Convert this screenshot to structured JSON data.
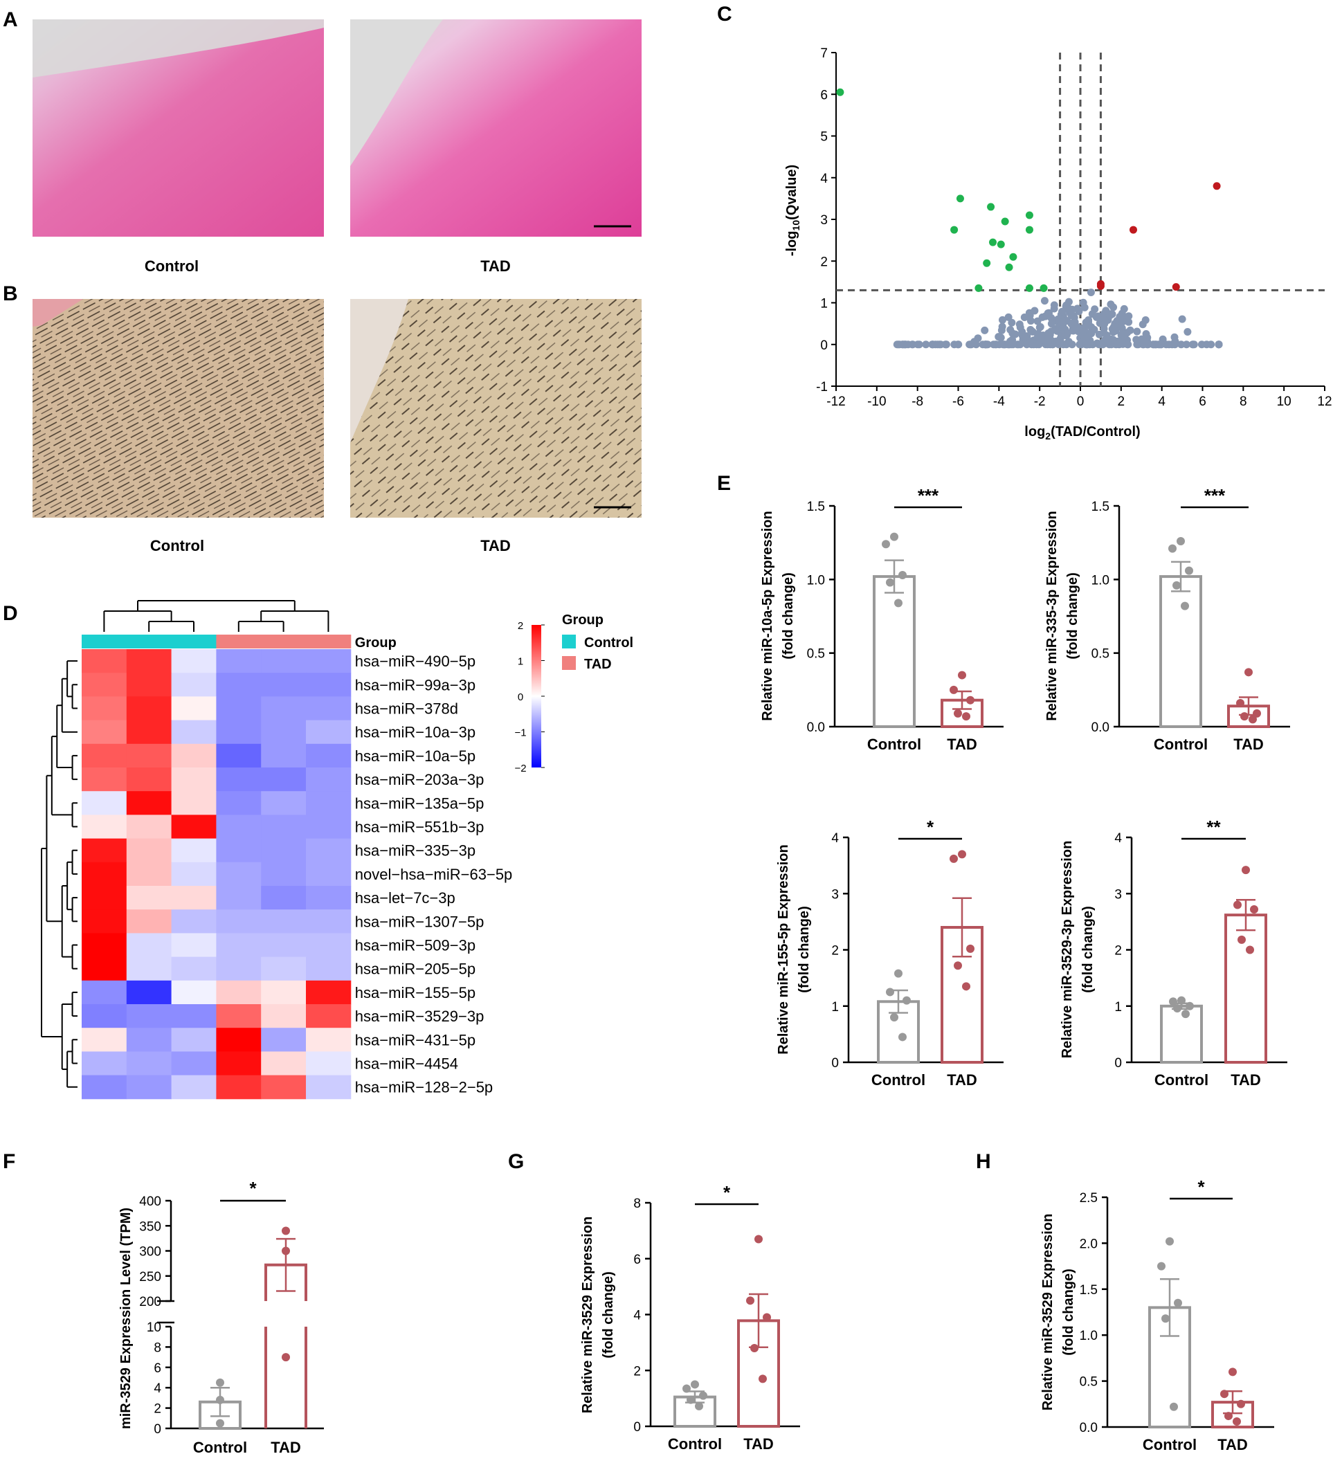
{
  "colors": {
    "control": "#999999",
    "tad": "#b5545c",
    "down_point": "#1fb34f",
    "up_point": "#c0191e",
    "ns_point": "#8596b2",
    "heat_high": "#ff0000",
    "heat_mid": "#ffffff",
    "heat_low": "#0000ff",
    "group_control": "#1ccfcf",
    "group_tad": "#f0807e"
  },
  "panels": {
    "A": {
      "label": "A",
      "left_caption": "Control",
      "right_caption": "TAD"
    },
    "B": {
      "label": "B",
      "left_caption": "Control",
      "right_caption": "TAD"
    },
    "C": {
      "label": "C"
    },
    "D": {
      "label": "D"
    },
    "E": {
      "label": "E"
    },
    "F": {
      "label": "F"
    },
    "G": {
      "label": "G"
    },
    "H": {
      "label": "H"
    }
  },
  "chart_data": [
    {
      "id": "C",
      "type": "scatter",
      "title": "",
      "xlabel": "log2(TAD/Control)",
      "ylabel": "-log10(Qvalue)",
      "xlim": [
        -12,
        12
      ],
      "ylim": [
        -1,
        7
      ],
      "xticks": [
        -12,
        -10,
        -8,
        -6,
        -4,
        -2,
        0,
        2,
        4,
        6,
        8,
        10,
        12
      ],
      "yticks": [
        -1,
        0,
        1,
        2,
        3,
        4,
        5,
        6,
        7
      ],
      "thresholds": {
        "x": [
          -1,
          0,
          1
        ],
        "y": 1.3
      },
      "down": [
        [
          -11.8,
          6.05
        ],
        [
          -5.9,
          3.5
        ],
        [
          -6.2,
          2.75
        ],
        [
          -4.4,
          3.3
        ],
        [
          -3.7,
          2.95
        ],
        [
          -2.5,
          3.1
        ],
        [
          -4.3,
          2.45
        ],
        [
          -3.9,
          2.4
        ],
        [
          -2.5,
          2.75
        ],
        [
          -4.6,
          1.95
        ],
        [
          -3.3,
          2.1
        ],
        [
          -3.5,
          1.85
        ],
        [
          -5.0,
          1.35
        ],
        [
          -2.5,
          1.35
        ],
        [
          -1.8,
          1.35
        ]
      ],
      "up": [
        [
          6.7,
          3.8
        ],
        [
          2.6,
          2.75
        ],
        [
          1.0,
          1.45
        ],
        [
          1.0,
          1.4
        ],
        [
          4.7,
          1.38
        ]
      ],
      "ns_seed": 7,
      "ns_count": 340
    },
    {
      "id": "D",
      "type": "heatmap",
      "group_label": "Group",
      "legend_title": "Group",
      "legend_entries": [
        "Control",
        "TAD"
      ],
      "columns": [
        "Control",
        "Control",
        "Control",
        "TAD",
        "TAD",
        "TAD"
      ],
      "scale": [
        -2,
        2
      ],
      "scale_ticks": [
        "2",
        "1",
        "0",
        "−1",
        "−2"
      ],
      "rows": [
        "hsa−miR−490−5p",
        "hsa−miR−99a−3p",
        "hsa−miR−378d",
        "hsa−miR−10a−3p",
        "hsa−miR−10a−5p",
        "hsa−miR−203a−3p",
        "hsa−miR−135a−5p",
        "hsa−miR−551b−3p",
        "hsa−miR−335−3p",
        "novel−hsa−miR−63−5p",
        "hsa−let−7c−3p",
        "hsa−miR−1307−5p",
        "hsa−miR−509−3p",
        "hsa−miR−205−5p",
        "hsa−miR−155−5p",
        "hsa−miR−3529−3p",
        "hsa−miR−431−5p",
        "hsa−miR−4454",
        "hsa−miR−128−2−5p"
      ],
      "values": [
        [
          1.3,
          1.6,
          -0.2,
          -0.8,
          -0.8,
          -0.8
        ],
        [
          1.2,
          1.6,
          -0.3,
          -0.9,
          -0.9,
          -0.9
        ],
        [
          1.1,
          1.7,
          0.1,
          -0.9,
          -0.8,
          -0.8
        ],
        [
          1.0,
          1.7,
          -0.4,
          -0.9,
          -0.8,
          -0.6
        ],
        [
          1.3,
          1.3,
          0.4,
          -1.2,
          -0.8,
          -0.9
        ],
        [
          1.2,
          1.4,
          0.3,
          -1.0,
          -1.0,
          -0.8
        ],
        [
          -0.2,
          1.9,
          0.3,
          -0.9,
          -0.7,
          -0.8
        ],
        [
          0.2,
          0.4,
          1.9,
          -0.8,
          -0.8,
          -0.8
        ],
        [
          1.8,
          0.5,
          -0.2,
          -0.8,
          -0.8,
          -0.7
        ],
        [
          1.9,
          0.5,
          -0.3,
          -0.7,
          -0.8,
          -0.7
        ],
        [
          1.9,
          0.3,
          0.3,
          -0.7,
          -0.9,
          -0.8
        ],
        [
          1.9,
          0.6,
          -0.5,
          -0.6,
          -0.6,
          -0.6
        ],
        [
          2.0,
          -0.3,
          -0.2,
          -0.5,
          -0.5,
          -0.5
        ],
        [
          2.0,
          -0.3,
          -0.4,
          -0.5,
          -0.4,
          -0.5
        ],
        [
          -0.9,
          -1.6,
          -0.1,
          0.4,
          0.2,
          1.8
        ],
        [
          -1.0,
          -0.9,
          -0.9,
          1.2,
          0.3,
          1.4
        ],
        [
          0.2,
          -0.8,
          -0.5,
          2.0,
          -0.7,
          0.2
        ],
        [
          -0.6,
          -0.7,
          -0.8,
          1.9,
          0.3,
          -0.2
        ],
        [
          -0.9,
          -0.8,
          -0.4,
          1.6,
          1.3,
          -0.4
        ]
      ],
      "dendro": {
        "rows": "(((((0,(1,2)),3),(4,5)),(6,7)),(((8,9),(10,11)),(12,13))),((14,15),((16,17),18))",
        "cols": "((0,(1,2)),((3,4),5))"
      }
    },
    {
      "id": "E1",
      "type": "bar",
      "categories": [
        "Control",
        "TAD"
      ],
      "ylabel": "Relative miR-10a-5p Expression (fold change)",
      "ylim": [
        0,
        1.5
      ],
      "yticks": [
        "0.0",
        "0.5",
        "1.0",
        "1.5"
      ],
      "values": [
        1.02,
        0.18
      ],
      "errors": [
        0.11,
        0.06
      ],
      "points": [
        [
          1.29,
          1.24,
          1.03,
          0.98,
          0.84
        ],
        [
          0.35,
          0.25,
          0.18,
          0.09,
          0.07
        ]
      ],
      "significance": "***"
    },
    {
      "id": "E2",
      "type": "bar",
      "categories": [
        "Control",
        "TAD"
      ],
      "ylabel": "Relative miR-335-3p Expression (fold change)",
      "ylim": [
        0,
        1.5
      ],
      "yticks": [
        "0.0",
        "0.5",
        "1.0",
        "1.5"
      ],
      "values": [
        1.02,
        0.14
      ],
      "errors": [
        0.1,
        0.06
      ],
      "points": [
        [
          1.26,
          1.21,
          1.06,
          0.96,
          0.82
        ],
        [
          0.37,
          0.16,
          0.09,
          0.07,
          0.05
        ]
      ],
      "significance": "***"
    },
    {
      "id": "E3",
      "type": "bar",
      "categories": [
        "Control",
        "TAD"
      ],
      "ylabel": "Relative miR-155-5p Expression (fold change)",
      "ylim": [
        0,
        4
      ],
      "yticks": [
        "0",
        "1",
        "2",
        "3",
        "4"
      ],
      "values": [
        1.08,
        2.4
      ],
      "errors": [
        0.2,
        0.52
      ],
      "points": [
        [
          1.58,
          1.25,
          1.1,
          0.8,
          0.45
        ],
        [
          3.7,
          3.62,
          2.02,
          1.72,
          1.35
        ]
      ],
      "significance": "*"
    },
    {
      "id": "E4",
      "type": "bar",
      "categories": [
        "Control",
        "TAD"
      ],
      "ylabel": "Relative miR-3529-3p Expression (fold change)",
      "ylim": [
        0,
        4
      ],
      "yticks": [
        "0",
        "1",
        "2",
        "3",
        "4"
      ],
      "values": [
        1.0,
        2.62
      ],
      "errors": [
        0.05,
        0.27
      ],
      "points": [
        [
          1.1,
          1.08,
          1.0,
          0.96,
          0.86
        ],
        [
          3.42,
          2.8,
          2.72,
          2.18,
          2.0
        ]
      ],
      "significance": "**"
    },
    {
      "id": "F",
      "type": "bar",
      "categories": [
        "Control",
        "TAD"
      ],
      "ylabel": "miR-3529 Expression Level (TPM)",
      "axis_break": true,
      "lower_ylim": [
        0,
        10
      ],
      "lower_yticks": [
        "0",
        "2",
        "4",
        "6",
        "8",
        "10"
      ],
      "upper_ylim": [
        200,
        400
      ],
      "upper_yticks": [
        "200",
        "250",
        "300",
        "350",
        "400"
      ],
      "values": [
        2.6,
        272
      ],
      "errors": [
        1.4,
        52
      ],
      "points": [
        [
          4.5,
          2.8,
          0.5
        ],
        [
          340,
          300,
          7
        ]
      ],
      "significance": "*"
    },
    {
      "id": "G",
      "type": "bar",
      "categories": [
        "Control",
        "TAD"
      ],
      "ylabel": "Relative miR-3529 Expression (fold change)",
      "ylim": [
        0,
        8
      ],
      "yticks": [
        "0",
        "2",
        "4",
        "6",
        "8"
      ],
      "values": [
        1.05,
        3.78
      ],
      "errors": [
        0.2,
        0.95
      ],
      "points": [
        [
          1.5,
          1.35,
          1.1,
          0.95,
          0.72
        ],
        [
          6.7,
          4.5,
          3.9,
          2.8,
          1.7
        ]
      ],
      "significance": "*"
    },
    {
      "id": "H",
      "type": "bar",
      "categories": [
        "Control",
        "TAD"
      ],
      "ylabel": "Relative miR-3529 Expression (fold change)",
      "ylim": [
        0,
        2.5
      ],
      "yticks": [
        "0.0",
        "0.5",
        "1.0",
        "1.5",
        "2.0",
        "2.5"
      ],
      "values": [
        1.3,
        0.27
      ],
      "errors": [
        0.31,
        0.12
      ],
      "points": [
        [
          2.02,
          1.75,
          1.35,
          1.18,
          0.22
        ],
        [
          0.6,
          0.36,
          0.25,
          0.12,
          0.06
        ]
      ],
      "significance": "*"
    }
  ]
}
